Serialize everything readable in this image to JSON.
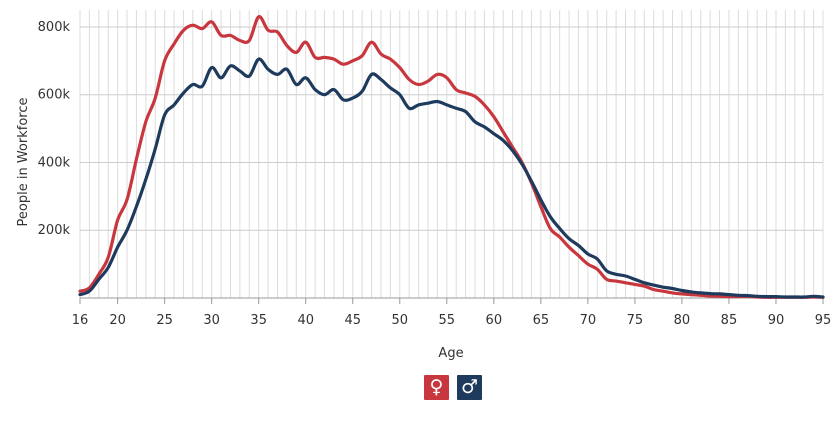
{
  "chart_data": {
    "type": "line",
    "xlabel": "Age",
    "ylabel": "People in Workforce",
    "xlim": [
      16,
      95
    ],
    "ylim": [
      0,
      850000
    ],
    "x_ticks": [
      16,
      20,
      25,
      30,
      35,
      40,
      45,
      50,
      55,
      60,
      65,
      70,
      75,
      80,
      85,
      90,
      95
    ],
    "y_ticks": [
      {
        "value": 200000,
        "label": "200k"
      },
      {
        "value": 400000,
        "label": "400k"
      },
      {
        "value": 600000,
        "label": "600k"
      },
      {
        "value": 800000,
        "label": "800k"
      }
    ],
    "vertical_grid_every": 1,
    "x": [
      16,
      17,
      18,
      19,
      20,
      21,
      22,
      23,
      24,
      25,
      26,
      27,
      28,
      29,
      30,
      31,
      32,
      33,
      34,
      35,
      36,
      37,
      38,
      39,
      40,
      41,
      42,
      43,
      44,
      45,
      46,
      47,
      48,
      49,
      50,
      51,
      52,
      53,
      54,
      55,
      56,
      57,
      58,
      59,
      60,
      61,
      62,
      63,
      64,
      65,
      66,
      67,
      68,
      69,
      70,
      71,
      72,
      73,
      74,
      75,
      76,
      77,
      78,
      79,
      80,
      81,
      82,
      83,
      84,
      85,
      86,
      87,
      88,
      89,
      90,
      91,
      92,
      93,
      94,
      95
    ],
    "series": [
      {
        "color": "#c8373e",
        "values": [
          20000,
          30000,
          70000,
          120000,
          230000,
          290000,
          410000,
          520000,
          590000,
          700000,
          750000,
          790000,
          805000,
          795000,
          815000,
          775000,
          775000,
          760000,
          760000,
          830000,
          790000,
          785000,
          745000,
          725000,
          755000,
          710000,
          710000,
          705000,
          690000,
          700000,
          715000,
          755000,
          720000,
          705000,
          680000,
          645000,
          630000,
          640000,
          660000,
          650000,
          615000,
          605000,
          595000,
          570000,
          535000,
          490000,
          445000,
          400000,
          340000,
          270000,
          205000,
          180000,
          150000,
          125000,
          100000,
          85000,
          55000,
          50000,
          45000,
          40000,
          35000,
          25000,
          20000,
          15000,
          12000,
          10000,
          8000,
          6000,
          5000,
          4000,
          4000,
          5000,
          3000,
          2000,
          2000,
          2000,
          2000,
          2000,
          3000,
          2000
        ]
      },
      {
        "color": "#1e3a5c",
        "values": [
          10000,
          20000,
          55000,
          90000,
          150000,
          200000,
          270000,
          350000,
          440000,
          540000,
          570000,
          605000,
          630000,
          625000,
          680000,
          650000,
          685000,
          670000,
          655000,
          705000,
          675000,
          660000,
          675000,
          630000,
          650000,
          615000,
          600000,
          615000,
          585000,
          590000,
          610000,
          660000,
          645000,
          620000,
          600000,
          560000,
          570000,
          575000,
          580000,
          570000,
          560000,
          550000,
          520000,
          505000,
          485000,
          465000,
          435000,
          395000,
          345000,
          290000,
          240000,
          205000,
          175000,
          155000,
          130000,
          115000,
          80000,
          70000,
          65000,
          55000,
          45000,
          38000,
          32000,
          28000,
          22000,
          18000,
          15000,
          13000,
          12000,
          10000,
          8000,
          7000,
          5000,
          4000,
          4000,
          3000,
          3000,
          3000,
          5000,
          3000
        ]
      }
    ]
  },
  "legend": {
    "female": {
      "symbol": "♀",
      "color": "#c8373e"
    },
    "male": {
      "symbol": "♂",
      "color": "#1e3a5c"
    }
  }
}
